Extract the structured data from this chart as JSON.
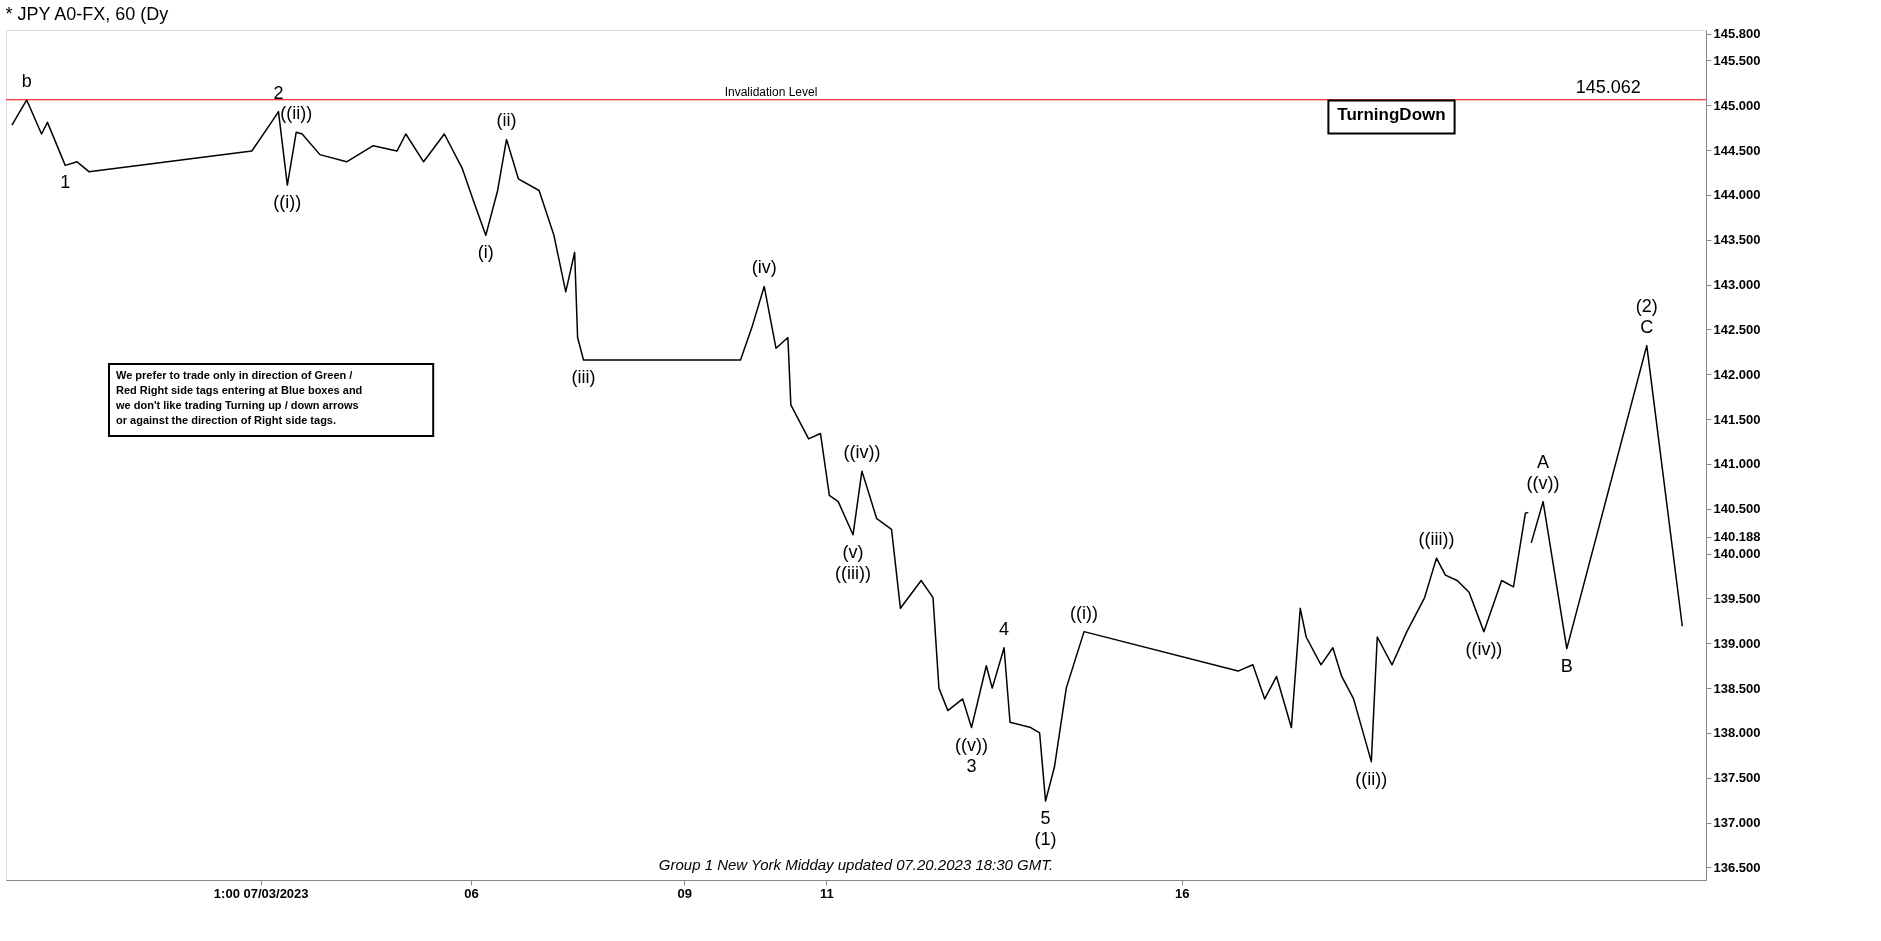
{
  "chart_data": {
    "type": "line",
    "title": "* JPY A0-FX, 60 (Dy",
    "series": [
      {
        "color": "#000000",
        "x": [
          "2023-06-29T13:00",
          "2023-06-29T18:00",
          "2023-06-29T23:00",
          "2023-06-30T01:00",
          "2023-06-30T07:00",
          "2023-06-30T11:00",
          "2023-06-30T15:00",
          "2023-07-02T22:00",
          "2023-07-03T05:00",
          "2023-07-03T07:00",
          "2023-07-03T10:00",
          "2023-07-03T13:00",
          "2023-07-03T15:00",
          "2023-07-03T21:00",
          "2023-07-04T06:00",
          "2023-07-04T15:00",
          "2023-07-04T23:00",
          "2023-07-05T02:00",
          "2023-07-05T08:00",
          "2023-07-05T15:00",
          "2023-07-05T21:00",
          "2023-07-06T01:00",
          "2023-07-06T05:00",
          "2023-07-06T09:00",
          "2023-07-06T12:00",
          "2023-07-06T16:00",
          "2023-07-06T23:00",
          "2023-07-07T04:00",
          "2023-07-07T08:00",
          "2023-07-07T11:00",
          "2023-07-07T12:00",
          "2023-07-07T14:00",
          "2023-07-09T19:00",
          "2023-07-09T23:00",
          "2023-07-10T03:00",
          "2023-07-10T07:00",
          "2023-07-10T11:00",
          "2023-07-10T12:00",
          "2023-07-10T18:00",
          "2023-07-10T22:00",
          "2023-07-11T01:00",
          "2023-07-11T04:00",
          "2023-07-11T09:00",
          "2023-07-11T12:00",
          "2023-07-11T17:00",
          "2023-07-11T22:00",
          "2023-07-12T01:00",
          "2023-07-12T08:00",
          "2023-07-12T12:00",
          "2023-07-12T14:00",
          "2023-07-12T17:00",
          "2023-07-12T22:00",
          "2023-07-13T01:00",
          "2023-07-13T06:00",
          "2023-07-13T08:00",
          "2023-07-13T12:00",
          "2023-07-13T14:00",
          "2023-07-13T21:00",
          "2023-07-14T00:00",
          "2023-07-14T02:00",
          "2023-07-14T05:00",
          "2023-07-14T09:00",
          "2023-07-14T15:00",
          "2023-07-16T19:00",
          "2023-07-17T00:00",
          "2023-07-17T04:00",
          "2023-07-17T08:00",
          "2023-07-17T13:00",
          "2023-07-17T16:00",
          "2023-07-17T18:00",
          "2023-07-17T23:00",
          "2023-07-18T03:00",
          "2023-07-18T06:00",
          "2023-07-18T10:00",
          "2023-07-18T16:00",
          "2023-07-18T18:00",
          "2023-07-18T23:00",
          "2023-07-19T04:00",
          "2023-07-19T10:00",
          "2023-07-19T14:00",
          "2023-07-19T17:00",
          "2023-07-19T21:00",
          "2023-07-20T01:00",
          "2023-07-20T06:00",
          "2023-07-20T12:00",
          "2023-07-20T16:00",
          "2023-07-20T20:00",
          "2023-07-20T21:00"
        ],
        "values": [
          144.78,
          145.06,
          144.68,
          144.81,
          144.33,
          144.37,
          144.26,
          144.49,
          144.83,
          144.93,
          144.11,
          144.7,
          144.68,
          144.45,
          144.37,
          144.55,
          144.49,
          144.68,
          144.37,
          144.68,
          144.3,
          143.92,
          143.55,
          144.05,
          144.62,
          144.18,
          144.05,
          143.55,
          142.92,
          143.36,
          142.41,
          142.16,
          142.16,
          142.54,
          142.98,
          142.29,
          142.41,
          141.66,
          141.28,
          141.34,
          140.65,
          140.58,
          140.21,
          140.92,
          140.39,
          140.27,
          139.39,
          139.7,
          139.51,
          138.5,
          138.25,
          138.38,
          138.06,
          138.75,
          138.5,
          138.95,
          138.12,
          138.06,
          138.0,
          137.24,
          137.62,
          138.5,
          139.13,
          138.69,
          138.76,
          138.38,
          138.63,
          138.06,
          139.39,
          139.07,
          138.76,
          138.95,
          138.63,
          138.38,
          137.68,
          139.07,
          138.76,
          139.13,
          139.51,
          139.95,
          139.76,
          139.7,
          139.57,
          139.13,
          139.7,
          139.63,
          140.45,
          140.46
        ]
      },
      {
        "color": "#000000",
        "x": [
          "2023-07-20T22:00",
          "2023-07-21T02:00",
          "2023-07-21T10:00",
          "2023-07-22T13:00",
          "2023-07-23T01:00"
        ],
        "values": [
          140.12,
          140.58,
          138.94,
          142.32,
          139.19
        ]
      }
    ],
    "xlim": [
      "2023-06-29T11:00",
      "2023-07-23T09:00"
    ],
    "xticks": [
      {
        "value": "2023-07-03T01:00",
        "label": "1:00 07/03/2023"
      },
      {
        "value": "2023-07-06",
        "label": "06"
      },
      {
        "value": "2023-07-09",
        "label": "09"
      },
      {
        "value": "2023-07-11",
        "label": "11"
      },
      {
        "value": "2023-07-16",
        "label": "16"
      }
    ],
    "ylim": [
      136.36,
      145.84
    ],
    "yticks": [
      {
        "value": 136.5,
        "label": "136.500"
      },
      {
        "value": 137,
        "label": "137.000"
      },
      {
        "value": 137.5,
        "label": "137.500"
      },
      {
        "value": 138,
        "label": "138.000"
      },
      {
        "value": 138.5,
        "label": "138.500"
      },
      {
        "value": 139,
        "label": "139.000"
      },
      {
        "value": 139.5,
        "label": "139.500"
      },
      {
        "value": 140,
        "label": "140.000"
      },
      {
        "value": 140.188,
        "label": "140.188"
      },
      {
        "value": 140.5,
        "label": "140.500"
      },
      {
        "value": 141,
        "label": "141.000"
      },
      {
        "value": 141.5,
        "label": "141.500"
      },
      {
        "value": 142,
        "label": "142.000"
      },
      {
        "value": 142.5,
        "label": "142.500"
      },
      {
        "value": 143,
        "label": "143.000"
      },
      {
        "value": 143.5,
        "label": "143.500"
      },
      {
        "value": 144,
        "label": "144.000"
      },
      {
        "value": 144.5,
        "label": "144.500"
      },
      {
        "value": 145,
        "label": "145.000"
      },
      {
        "value": 145.5,
        "label": "145.500"
      },
      {
        "value": 145.8,
        "label": "145.800"
      }
    ],
    "ref_lines": [
      {
        "axis": "y",
        "value": 145.062,
        "label": "Invalidation Level",
        "color": "#ff0000"
      }
    ],
    "annotations": [
      "We prefer to trade only in direction of Green / Red Right side tags entering at Blue boxes and we don't like trading Turning up / down arrows or against the direction of Right side tags.",
      "TurningDown",
      "Group 1 New York Midday updated 07.20.2023 18:30 GMT.",
      {
        "text": "145.062",
        "x": "2023-07-22T00:00",
        "y": 145.062
      },
      {
        "text": "b",
        "x": "2023-06-29T18:00",
        "y": 145.06
      },
      {
        "text": "1",
        "x": "2023-06-30T07:00",
        "y": 144.33
      },
      {
        "text": "2",
        "x": "2023-07-03T07:00",
        "y": 144.93
      },
      {
        "text": "((i))",
        "x": "2023-07-03T10:00",
        "y": 144.11
      },
      {
        "text": "((ii))",
        "x": "2023-07-03T13:00",
        "y": 144.7
      },
      {
        "text": "(i)",
        "x": "2023-07-06T05:00",
        "y": 143.55
      },
      {
        "text": "(ii)",
        "x": "2023-07-06T12:00",
        "y": 144.62
      },
      {
        "text": "(iii)",
        "x": "2023-07-07T14:00",
        "y": 142.16
      },
      {
        "text": "(iv)",
        "x": "2023-07-10T03:00",
        "y": 142.98
      },
      {
        "text": "(v)",
        "x": "2023-07-11T09:00",
        "y": 140.21
      },
      {
        "text": "((iii))",
        "x": "2023-07-11T09:00",
        "y": 140.21
      },
      {
        "text": "((iv))",
        "x": "2023-07-11T12:00",
        "y": 140.92
      },
      {
        "text": "((v))",
        "x": "2023-07-13T01:00",
        "y": 138.06
      },
      {
        "text": "3",
        "x": "2023-07-13T01:00",
        "y": 138.06
      },
      {
        "text": "4",
        "x": "2023-07-13T12:00",
        "y": 138.95
      },
      {
        "text": "5",
        "x": "2023-07-14T02:00",
        "y": 137.24
      },
      {
        "text": "(1)",
        "x": "2023-07-14T02:00",
        "y": 137.24
      },
      {
        "text": "((i))",
        "x": "2023-07-14T15:00",
        "y": 139.13
      },
      {
        "text": "((ii))",
        "x": "2023-07-18T16:00",
        "y": 137.68
      },
      {
        "text": "((iii))",
        "x": "2023-07-19T14:00",
        "y": 139.95
      },
      {
        "text": "((iv))",
        "x": "2023-07-20T06:00",
        "y": 139.13
      },
      {
        "text": "((v))",
        "x": "2023-07-21T02:00",
        "y": 140.58
      },
      {
        "text": "A",
        "x": "2023-07-21T02:00",
        "y": 140.58
      },
      {
        "text": "B",
        "x": "2023-07-21T10:00",
        "y": 138.94
      },
      {
        "text": "C",
        "x": "2023-07-22T13:00",
        "y": 142.32
      },
      {
        "text": "(2)",
        "x": "2023-07-22T13:00",
        "y": 142.32
      }
    ],
    "grid": false,
    "legend": false,
    "marker": "none",
    "line_style": "solid"
  }
}
